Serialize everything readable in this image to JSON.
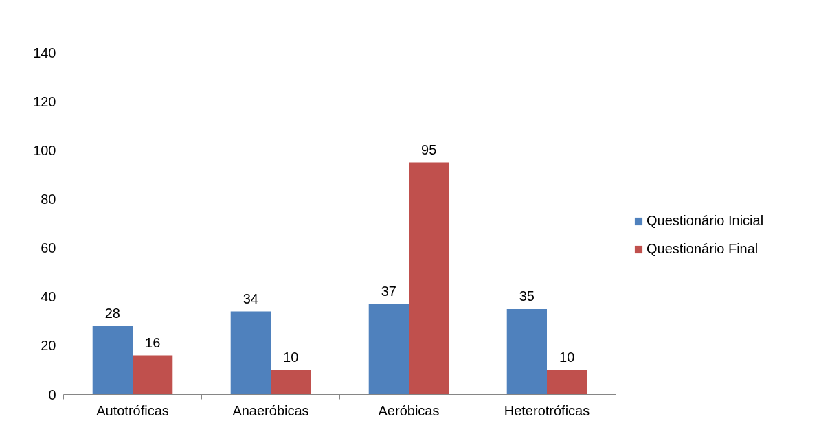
{
  "chart_data": {
    "type": "bar",
    "categories": [
      "Autotróficas",
      "Anaeróbicas",
      "Aeróbicas",
      "Heterotróficas"
    ],
    "series": [
      {
        "name": "Questionário Inicial",
        "color": "#4f81bd",
        "values": [
          28,
          34,
          37,
          35
        ]
      },
      {
        "name": "Questionário Final",
        "color": "#c0504d",
        "values": [
          16,
          10,
          95,
          10
        ]
      }
    ],
    "ylim": [
      0,
      140
    ],
    "yticks": [
      0,
      20,
      40,
      60,
      80,
      100,
      120,
      140
    ],
    "grid": false,
    "legend": "right",
    "data_labels": true
  }
}
